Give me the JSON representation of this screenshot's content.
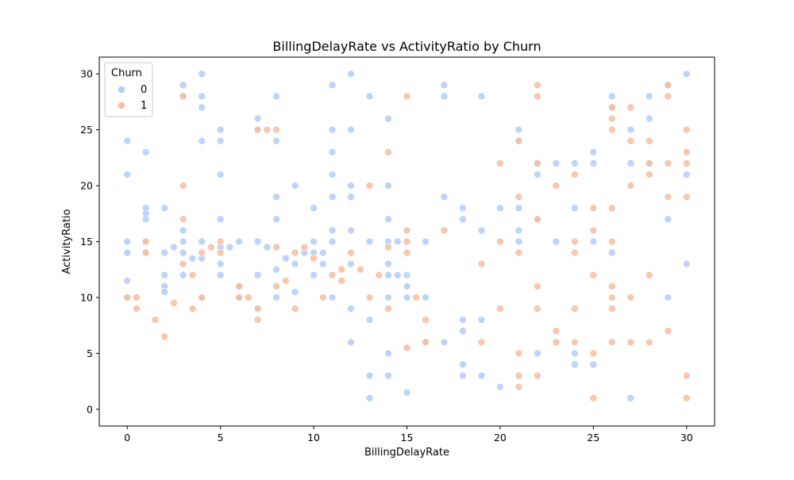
{
  "chart_data": {
    "type": "scatter",
    "title": "BillingDelayRate vs ActivityRatio by Churn",
    "xlabel": "BillingDelayRate",
    "ylabel": "ActivityRatio",
    "xlim": [
      -1.5,
      31.5
    ],
    "ylim": [
      -1.5,
      31.5
    ],
    "xticks": [
      0,
      5,
      10,
      15,
      20,
      25,
      30
    ],
    "yticks": [
      0,
      5,
      10,
      15,
      20,
      25,
      30
    ],
    "grid": false,
    "legend": {
      "title": "Churn",
      "placement": "top-left",
      "entries": [
        "0",
        "1"
      ]
    },
    "colors": {
      "0": "#b3cdf7",
      "1": "#f5be9f"
    },
    "series": [
      {
        "name": "0",
        "points": [
          [
            0,
            24
          ],
          [
            0,
            21
          ],
          [
            0,
            15
          ],
          [
            0,
            14
          ],
          [
            0,
            11.5
          ],
          [
            0,
            10
          ],
          [
            1,
            23
          ],
          [
            1,
            18
          ],
          [
            1,
            17.5
          ],
          [
            1,
            17
          ],
          [
            1,
            15
          ],
          [
            1,
            14
          ],
          [
            2,
            18
          ],
          [
            2,
            14
          ],
          [
            2,
            12
          ],
          [
            2,
            11
          ],
          [
            2,
            10.5
          ],
          [
            2.5,
            14.5
          ],
          [
            3,
            29
          ],
          [
            3,
            28
          ],
          [
            3,
            16
          ],
          [
            3,
            15
          ],
          [
            3,
            14
          ],
          [
            3,
            12
          ],
          [
            3.5,
            13.5
          ],
          [
            4,
            30
          ],
          [
            4,
            28
          ],
          [
            4,
            27
          ],
          [
            4,
            24
          ],
          [
            4,
            15
          ],
          [
            4,
            13.5
          ],
          [
            4,
            10
          ],
          [
            5,
            25
          ],
          [
            5,
            24
          ],
          [
            5,
            21
          ],
          [
            5,
            17
          ],
          [
            5,
            14.5
          ],
          [
            5,
            13
          ],
          [
            5,
            12
          ],
          [
            5.5,
            14.5
          ],
          [
            6,
            15
          ],
          [
            6,
            11
          ],
          [
            6,
            10
          ],
          [
            7,
            26
          ],
          [
            7,
            25
          ],
          [
            7,
            15
          ],
          [
            7,
            12
          ],
          [
            7,
            9
          ],
          [
            7.5,
            14.5
          ],
          [
            8,
            28
          ],
          [
            8,
            24
          ],
          [
            8,
            19
          ],
          [
            8,
            17
          ],
          [
            8,
            12.5
          ],
          [
            8,
            10
          ],
          [
            8.5,
            13.5
          ],
          [
            9,
            20
          ],
          [
            9,
            13
          ],
          [
            9,
            10.5
          ],
          [
            9.5,
            14
          ],
          [
            10,
            18
          ],
          [
            10,
            15
          ],
          [
            10,
            14
          ],
          [
            10,
            12
          ],
          [
            10.5,
            14
          ],
          [
            10.5,
            13
          ],
          [
            11,
            29
          ],
          [
            11,
            25
          ],
          [
            11,
            23
          ],
          [
            11,
            21
          ],
          [
            11,
            19
          ],
          [
            11,
            16
          ],
          [
            11,
            15
          ],
          [
            11,
            10
          ],
          [
            12,
            30
          ],
          [
            12,
            25
          ],
          [
            12,
            20
          ],
          [
            12,
            19
          ],
          [
            12,
            16
          ],
          [
            12,
            13
          ],
          [
            12,
            9
          ],
          [
            12,
            6
          ],
          [
            13,
            28
          ],
          [
            13,
            15
          ],
          [
            13,
            8
          ],
          [
            13,
            3
          ],
          [
            13,
            1
          ],
          [
            14,
            26
          ],
          [
            14,
            20
          ],
          [
            14,
            17
          ],
          [
            14,
            15
          ],
          [
            14,
            13
          ],
          [
            14,
            12
          ],
          [
            14,
            10
          ],
          [
            14,
            5
          ],
          [
            14,
            3
          ],
          [
            14.5,
            15
          ],
          [
            14.5,
            12
          ],
          [
            15,
            12
          ],
          [
            15,
            11
          ],
          [
            15,
            10
          ],
          [
            15,
            1.5
          ],
          [
            16,
            15
          ],
          [
            16,
            10
          ],
          [
            16,
            6
          ],
          [
            17,
            29
          ],
          [
            17,
            28
          ],
          [
            17,
            19
          ],
          [
            17,
            6
          ],
          [
            18,
            18
          ],
          [
            18,
            17
          ],
          [
            18,
            8
          ],
          [
            18,
            7
          ],
          [
            18,
            4
          ],
          [
            18,
            3
          ],
          [
            19,
            28
          ],
          [
            19,
            16
          ],
          [
            19,
            8
          ],
          [
            19,
            3
          ],
          [
            20,
            18
          ],
          [
            20,
            2
          ],
          [
            21,
            25
          ],
          [
            21,
            24
          ],
          [
            21,
            18
          ],
          [
            21,
            16
          ],
          [
            21,
            15
          ],
          [
            22,
            22
          ],
          [
            22,
            21
          ],
          [
            22,
            17
          ],
          [
            22,
            5
          ],
          [
            23,
            22
          ],
          [
            23,
            15
          ],
          [
            24,
            22
          ],
          [
            24,
            18
          ],
          [
            24,
            5
          ],
          [
            24,
            4
          ],
          [
            25,
            23
          ],
          [
            25,
            22
          ],
          [
            25,
            15
          ],
          [
            25,
            4
          ],
          [
            26,
            28
          ],
          [
            26,
            27
          ],
          [
            26,
            14
          ],
          [
            27,
            25
          ],
          [
            27,
            22
          ],
          [
            27,
            1
          ],
          [
            28,
            28
          ],
          [
            28,
            26
          ],
          [
            28,
            22
          ],
          [
            29,
            29
          ],
          [
            29,
            17
          ],
          [
            29,
            10
          ],
          [
            30,
            30
          ],
          [
            30,
            21
          ],
          [
            30,
            13
          ]
        ]
      },
      {
        "name": "1",
        "points": [
          [
            0,
            10
          ],
          [
            0.5,
            10
          ],
          [
            0.5,
            9
          ],
          [
            1,
            15
          ],
          [
            1,
            14
          ],
          [
            1.5,
            8
          ],
          [
            2,
            6.5
          ],
          [
            2.5,
            9.5
          ],
          [
            3,
            28
          ],
          [
            3,
            20
          ],
          [
            3,
            17
          ],
          [
            3,
            13
          ],
          [
            3.5,
            12
          ],
          [
            3.5,
            9
          ],
          [
            4,
            14
          ],
          [
            4,
            10
          ],
          [
            4.5,
            14.5
          ],
          [
            5,
            15
          ],
          [
            5,
            14
          ],
          [
            6,
            11
          ],
          [
            6,
            10
          ],
          [
            6.5,
            10
          ],
          [
            7,
            25
          ],
          [
            7,
            9
          ],
          [
            7,
            8
          ],
          [
            7.5,
            25
          ],
          [
            8,
            25
          ],
          [
            8,
            14.5
          ],
          [
            8,
            11
          ],
          [
            8.5,
            11.5
          ],
          [
            9,
            14
          ],
          [
            9.5,
            14.5
          ],
          [
            9,
            9
          ],
          [
            10,
            13.5
          ],
          [
            10.5,
            10
          ],
          [
            11,
            12
          ],
          [
            11.5,
            12.5
          ],
          [
            11.5,
            11.5
          ],
          [
            12,
            14
          ],
          [
            12.5,
            12.5
          ],
          [
            13,
            20
          ],
          [
            13,
            10
          ],
          [
            13.5,
            12
          ],
          [
            14,
            23
          ],
          [
            14,
            14.5
          ],
          [
            14,
            9
          ],
          [
            15,
            28
          ],
          [
            15,
            16
          ],
          [
            15,
            15
          ],
          [
            15,
            14
          ],
          [
            15,
            5.5
          ],
          [
            15.5,
            10
          ],
          [
            16,
            8
          ],
          [
            16,
            6
          ],
          [
            17,
            16
          ],
          [
            19,
            13
          ],
          [
            19,
            6
          ],
          [
            20,
            22
          ],
          [
            20,
            15
          ],
          [
            20,
            9
          ],
          [
            21,
            24
          ],
          [
            21,
            19
          ],
          [
            21,
            14
          ],
          [
            21,
            5
          ],
          [
            21,
            3
          ],
          [
            21,
            2
          ],
          [
            22,
            29
          ],
          [
            22,
            28
          ],
          [
            22,
            22
          ],
          [
            22,
            17
          ],
          [
            22,
            11
          ],
          [
            22,
            9
          ],
          [
            22,
            3
          ],
          [
            23,
            20
          ],
          [
            23,
            7
          ],
          [
            23,
            6
          ],
          [
            24,
            21
          ],
          [
            24,
            15
          ],
          [
            24,
            14
          ],
          [
            24,
            9
          ],
          [
            24,
            6
          ],
          [
            25,
            18
          ],
          [
            25,
            16
          ],
          [
            25,
            12
          ],
          [
            25,
            5
          ],
          [
            25,
            1
          ],
          [
            26,
            27
          ],
          [
            26,
            26
          ],
          [
            26,
            25
          ],
          [
            26,
            18
          ],
          [
            26,
            15
          ],
          [
            26,
            11
          ],
          [
            26,
            10
          ],
          [
            26,
            9
          ],
          [
            26,
            6
          ],
          [
            27,
            27
          ],
          [
            27,
            24
          ],
          [
            27,
            20
          ],
          [
            27,
            10
          ],
          [
            27,
            6
          ],
          [
            28,
            24
          ],
          [
            28,
            22
          ],
          [
            28,
            21
          ],
          [
            28,
            12
          ],
          [
            28,
            6
          ],
          [
            29,
            29
          ],
          [
            29,
            28
          ],
          [
            29,
            22
          ],
          [
            29,
            19
          ],
          [
            29,
            7
          ],
          [
            30,
            25
          ],
          [
            30,
            23
          ],
          [
            30,
            22
          ],
          [
            30,
            19
          ],
          [
            30,
            3
          ],
          [
            30,
            1
          ]
        ]
      }
    ]
  }
}
